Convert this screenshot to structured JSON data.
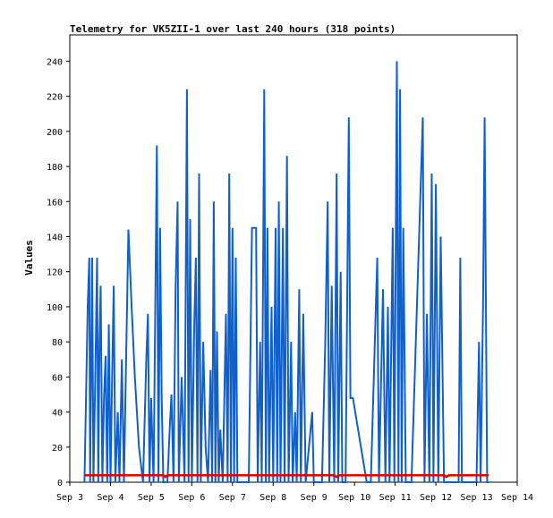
{
  "chart_data": {
    "type": "line",
    "title": "Telemetry for VK5ZII-1 over last 240 hours (318 points)",
    "xlabel": "",
    "ylabel": "Values",
    "x_unit": "days",
    "x_ticks": [
      "Sep 3",
      "Sep 4",
      "Sep 5",
      "Sep 6",
      "Sep 7",
      "Sep 8",
      "Sep 9",
      "Sep 10",
      "Sep 11",
      "Sep 12",
      "Sep 13",
      "Sep 14"
    ],
    "xlim": [
      "Sep 3",
      "Sep 14"
    ],
    "y_ticks": [
      0,
      20,
      40,
      60,
      80,
      100,
      120,
      140,
      160,
      180,
      200,
      220,
      240
    ],
    "ylim": [
      0,
      255
    ],
    "grid": false,
    "legend": "none",
    "series": [
      {
        "color": "#1060c8",
        "points": [
          [
            3.36,
            0
          ],
          [
            3.4,
            50
          ],
          [
            3.44,
            100
          ],
          [
            3.48,
            128
          ],
          [
            3.5,
            0
          ],
          [
            3.55,
            128
          ],
          [
            3.58,
            0
          ],
          [
            3.63,
            64
          ],
          [
            3.67,
            128
          ],
          [
            3.7,
            0
          ],
          [
            3.73,
            80
          ],
          [
            3.76,
            112
          ],
          [
            3.8,
            0
          ],
          [
            3.84,
            48
          ],
          [
            3.88,
            72
          ],
          [
            3.92,
            0
          ],
          [
            3.96,
            90
          ],
          [
            4.0,
            0
          ],
          [
            4.04,
            60
          ],
          [
            4.08,
            112
          ],
          [
            4.12,
            0
          ],
          [
            4.18,
            40
          ],
          [
            4.22,
            0
          ],
          [
            4.28,
            70
          ],
          [
            4.33,
            0
          ],
          [
            4.44,
            144
          ],
          [
            4.52,
            100
          ],
          [
            4.6,
            60
          ],
          [
            4.7,
            20
          ],
          [
            4.8,
            0
          ],
          [
            4.88,
            70
          ],
          [
            4.92,
            96
          ],
          [
            4.96,
            0
          ],
          [
            5.0,
            48
          ],
          [
            5.06,
            0
          ],
          [
            5.14,
            192
          ],
          [
            5.18,
            0
          ],
          [
            5.22,
            145
          ],
          [
            5.26,
            48
          ],
          [
            5.3,
            0
          ],
          [
            5.4,
            0
          ],
          [
            5.46,
            32
          ],
          [
            5.5,
            50
          ],
          [
            5.55,
            0
          ],
          [
            5.6,
            110
          ],
          [
            5.65,
            160
          ],
          [
            5.68,
            0
          ],
          [
            5.75,
            60
          ],
          [
            5.82,
            0
          ],
          [
            5.88,
            224
          ],
          [
            5.92,
            0
          ],
          [
            5.96,
            150
          ],
          [
            6.0,
            0
          ],
          [
            6.06,
            90
          ],
          [
            6.1,
            128
          ],
          [
            6.14,
            0
          ],
          [
            6.18,
            176
          ],
          [
            6.22,
            0
          ],
          [
            6.28,
            80
          ],
          [
            6.34,
            20
          ],
          [
            6.4,
            0
          ],
          [
            6.46,
            64
          ],
          [
            6.5,
            0
          ],
          [
            6.54,
            160
          ],
          [
            6.58,
            0
          ],
          [
            6.62,
            86
          ],
          [
            6.66,
            0
          ],
          [
            6.7,
            30
          ],
          [
            6.76,
            0
          ],
          [
            6.84,
            96
          ],
          [
            6.88,
            0
          ],
          [
            6.92,
            176
          ],
          [
            6.96,
            0
          ],
          [
            7.0,
            145
          ],
          [
            7.04,
            0
          ],
          [
            7.08,
            128
          ],
          [
            7.12,
            0
          ],
          [
            7.2,
            0
          ],
          [
            7.4,
            0
          ],
          [
            7.48,
            145
          ],
          [
            7.58,
            145
          ],
          [
            7.62,
            0
          ],
          [
            7.68,
            80
          ],
          [
            7.72,
            0
          ],
          [
            7.78,
            224
          ],
          [
            7.82,
            0
          ],
          [
            7.86,
            145
          ],
          [
            7.9,
            0
          ],
          [
            7.96,
            100
          ],
          [
            8.0,
            0
          ],
          [
            8.06,
            145
          ],
          [
            8.1,
            0
          ],
          [
            8.14,
            160
          ],
          [
            8.18,
            0
          ],
          [
            8.24,
            145
          ],
          [
            8.28,
            0
          ],
          [
            8.34,
            186
          ],
          [
            8.38,
            0
          ],
          [
            8.44,
            80
          ],
          [
            8.48,
            0
          ],
          [
            8.54,
            40
          ],
          [
            8.58,
            0
          ],
          [
            8.64,
            110
          ],
          [
            8.68,
            0
          ],
          [
            8.74,
            96
          ],
          [
            8.8,
            0
          ],
          [
            8.96,
            40
          ],
          [
            9.0,
            0
          ],
          [
            9.04,
            0
          ],
          [
            9.2,
            0
          ],
          [
            9.28,
            80
          ],
          [
            9.34,
            160
          ],
          [
            9.38,
            0
          ],
          [
            9.44,
            112
          ],
          [
            9.5,
            0
          ],
          [
            9.56,
            176
          ],
          [
            9.6,
            0
          ],
          [
            9.66,
            120
          ],
          [
            9.7,
            0
          ],
          [
            9.78,
            0
          ],
          [
            9.86,
            208
          ],
          [
            9.9,
            48
          ],
          [
            9.96,
            48
          ],
          [
            10.3,
            0
          ],
          [
            10.4,
            0
          ],
          [
            10.56,
            128
          ],
          [
            10.6,
            0
          ],
          [
            10.7,
            110
          ],
          [
            10.76,
            0
          ],
          [
            10.82,
            100
          ],
          [
            10.86,
            0
          ],
          [
            10.94,
            145
          ],
          [
            10.98,
            0
          ],
          [
            11.04,
            240
          ],
          [
            11.08,
            0
          ],
          [
            11.12,
            224
          ],
          [
            11.16,
            0
          ],
          [
            11.2,
            145
          ],
          [
            11.26,
            0
          ],
          [
            11.4,
            0
          ],
          [
            11.68,
            208
          ],
          [
            11.72,
            0
          ],
          [
            11.78,
            96
          ],
          [
            11.84,
            0
          ],
          [
            11.9,
            176
          ],
          [
            11.94,
            0
          ],
          [
            12.0,
            170
          ],
          [
            12.06,
            0
          ],
          [
            12.12,
            140
          ],
          [
            12.2,
            0
          ],
          [
            12.56,
            0
          ],
          [
            12.6,
            128
          ],
          [
            12.64,
            0
          ],
          [
            12.7,
            0
          ],
          [
            13.0,
            0
          ],
          [
            13.06,
            80
          ],
          [
            13.1,
            0
          ],
          [
            13.16,
            100
          ],
          [
            13.2,
            208
          ],
          [
            13.26,
            0
          ],
          [
            13.3,
            0
          ]
        ]
      },
      {
        "color": "#e00000",
        "points": [
          [
            3.36,
            4
          ],
          [
            5.3,
            4
          ],
          [
            5.35,
            3
          ],
          [
            5.4,
            4
          ],
          [
            9.5,
            4
          ],
          [
            9.56,
            3
          ],
          [
            9.62,
            4
          ],
          [
            11.5,
            4
          ],
          [
            12.2,
            4
          ],
          [
            12.26,
            3
          ],
          [
            12.32,
            4
          ],
          [
            13.3,
            4
          ]
        ]
      }
    ]
  }
}
